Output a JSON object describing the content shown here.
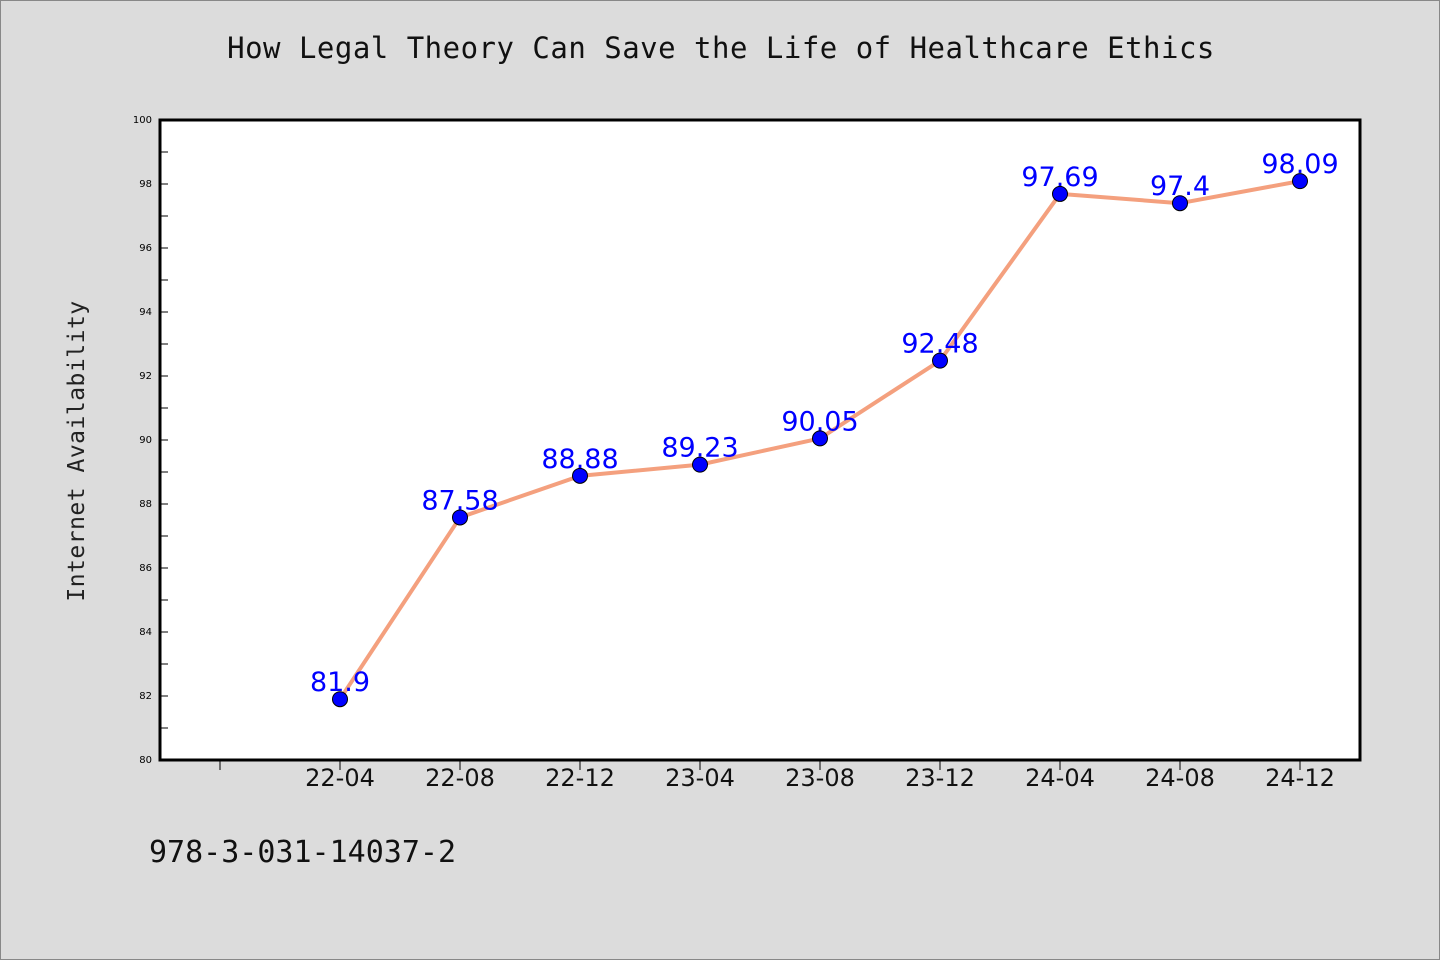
{
  "chart_data": {
    "type": "line",
    "title": "How Legal Theory Can Save the Life of Healthcare Ethics",
    "xlabel": "",
    "ylabel": "Internet Availability",
    "categories": [
      "22-04",
      "22-08",
      "22-12",
      "23-04",
      "23-08",
      "23-12",
      "24-04",
      "24-08",
      "24-12"
    ],
    "series": [
      {
        "values": [
          81.9,
          87.58,
          88.88,
          89.23,
          90.05,
          92.48,
          97.69,
          97.4,
          98.09
        ]
      }
    ],
    "data_labels": [
      "81.9",
      "87.58",
      "88.88",
      "89.23",
      "90.05",
      "92.48",
      "97.69",
      "97.4",
      "98.09"
    ],
    "ylim": [
      80,
      100
    ],
    "yticks": [
      80,
      82,
      84,
      86,
      88,
      90,
      92,
      94,
      96,
      98,
      100
    ],
    "grid": false,
    "colors": {
      "line": "#f4a07e",
      "marker": "#0000ff",
      "label": "#0000ff"
    }
  },
  "footer": {
    "text": "978-3-031-14037-2"
  }
}
